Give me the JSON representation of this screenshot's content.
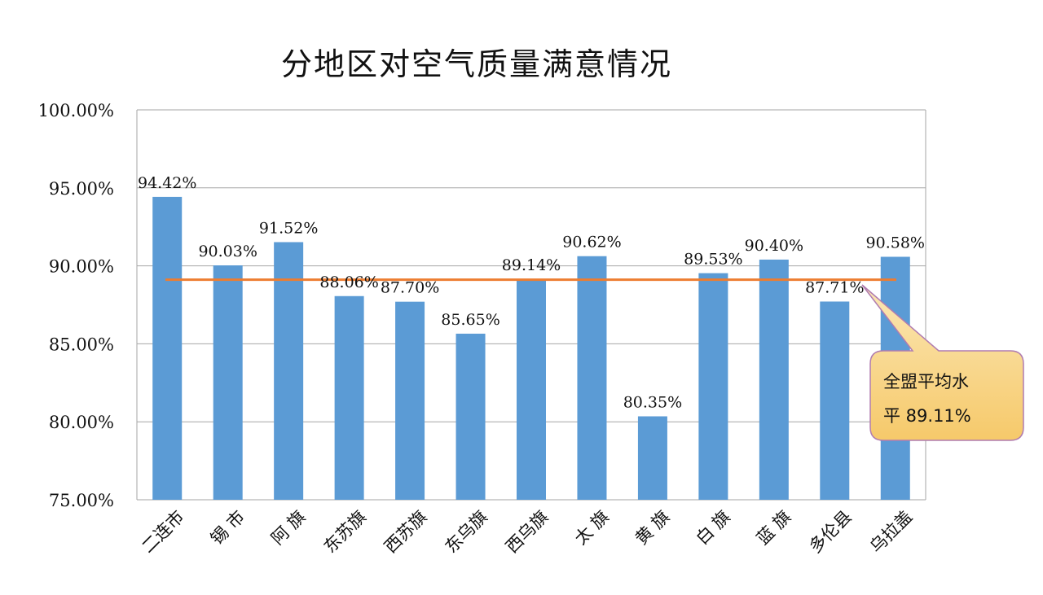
{
  "chart_data": {
    "type": "bar",
    "title": "分地区对空气质量满意情况",
    "categories": [
      "二连市",
      "锡  市",
      "阿  旗",
      "东苏旗",
      "西苏旗",
      "东乌旗",
      "西乌旗",
      "太  旗",
      "黄  旗",
      "白  旗",
      "蓝  旗",
      "多伦县",
      "乌拉盖"
    ],
    "values": [
      94.42,
      90.03,
      91.52,
      88.06,
      87.7,
      85.65,
      89.14,
      90.62,
      80.35,
      89.53,
      90.4,
      87.71,
      90.58
    ],
    "data_labels": [
      "94.42%",
      "90.03%",
      "91.52%",
      "88.06%",
      "87.70%",
      "85.65%",
      "89.14%",
      "90.62%",
      "80.35%",
      "89.53%",
      "90.40%",
      "87.71%",
      "90.58%"
    ],
    "ylim": [
      75,
      100
    ],
    "yticks": [
      100,
      95,
      90,
      85,
      80,
      75
    ],
    "ytick_labels": [
      "100.00%",
      "95.00%",
      "90.00%",
      "85.00%",
      "80.00%",
      "75.00%"
    ],
    "grid": true,
    "bar_color": "#5b9bd5",
    "reference_line": {
      "value": 89.11,
      "color": "#ed7d31"
    },
    "annotation": {
      "line1": "全盟平均水",
      "line2": "平 89.11%"
    }
  }
}
